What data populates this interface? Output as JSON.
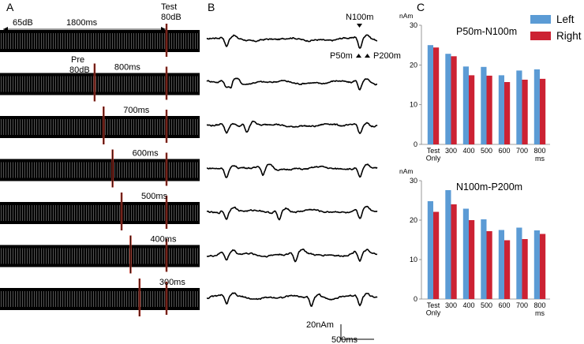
{
  "panels": {
    "a": "A",
    "b": "B",
    "c": "C"
  },
  "panel_a": {
    "top_level_label": "65dB",
    "isi_label": "1800ms",
    "test_label_line1": "Test",
    "test_label_line2": "80dB",
    "pre_label_line1": "Pre",
    "pre_label_line2": "80dB",
    "rows": [
      {
        "interval_label": "",
        "pre_ms": null
      },
      {
        "interval_label": "800ms",
        "pre_ms": 800
      },
      {
        "interval_label": "700ms",
        "pre_ms": 700
      },
      {
        "interval_label": "600ms",
        "pre_ms": 600
      },
      {
        "interval_label": "500ms",
        "pre_ms": 500
      },
      {
        "interval_label": "400ms",
        "pre_ms": 400
      },
      {
        "interval_label": "300ms",
        "pre_ms": 300
      }
    ]
  },
  "panel_b": {
    "n100_label": "N100m",
    "p50_label": "P50m",
    "p200_label": "P200m",
    "scale_amp_label": "20nAm",
    "scale_time_label": "500ms"
  },
  "panel_c": {
    "legend": [
      {
        "name": "Left",
        "color": "#5b9bd5"
      },
      {
        "name": "Right",
        "color": "#cc2233"
      }
    ],
    "xunit_label": "ms"
  },
  "chart_data": [
    {
      "type": "bar",
      "title": "P50m-N100m",
      "ylabel": "nAm",
      "xlabel": "ms",
      "ylim": [
        0,
        30
      ],
      "yticks": [
        0,
        10,
        20,
        30
      ],
      "categories": [
        "Test Only",
        "300",
        "400",
        "500",
        "600",
        "700",
        "800"
      ],
      "category_lines": [
        [
          "Test",
          "Only"
        ],
        [
          "300"
        ],
        [
          "400"
        ],
        [
          "500"
        ],
        [
          "600"
        ],
        [
          "700"
        ],
        [
          "800"
        ]
      ],
      "series": [
        {
          "name": "Left",
          "color": "#5b9bd5",
          "values": [
            25.0,
            22.8,
            19.6,
            19.5,
            17.4,
            18.6,
            18.9
          ]
        },
        {
          "name": "Right",
          "color": "#cc2233",
          "values": [
            24.4,
            22.2,
            17.4,
            17.3,
            15.7,
            16.3,
            16.5
          ]
        }
      ],
      "grid": false
    },
    {
      "type": "bar",
      "title": "N100m-P200m",
      "ylabel": "nAm",
      "xlabel": "ms",
      "ylim": [
        0,
        30
      ],
      "yticks": [
        0,
        10,
        20,
        30
      ],
      "categories": [
        "Test Only",
        "300",
        "400",
        "500",
        "600",
        "700",
        "800"
      ],
      "category_lines": [
        [
          "Test",
          "Only"
        ],
        [
          "300"
        ],
        [
          "400"
        ],
        [
          "500"
        ],
        [
          "600"
        ],
        [
          "700"
        ],
        [
          "800"
        ]
      ],
      "series": [
        {
          "name": "Left",
          "color": "#5b9bd5",
          "values": [
            24.8,
            27.6,
            22.9,
            20.2,
            17.5,
            18.1,
            17.4
          ]
        },
        {
          "name": "Right",
          "color": "#cc2233",
          "values": [
            22.1,
            24.0,
            20.0,
            17.2,
            14.9,
            15.2,
            16.5
          ]
        }
      ],
      "grid": false
    }
  ]
}
